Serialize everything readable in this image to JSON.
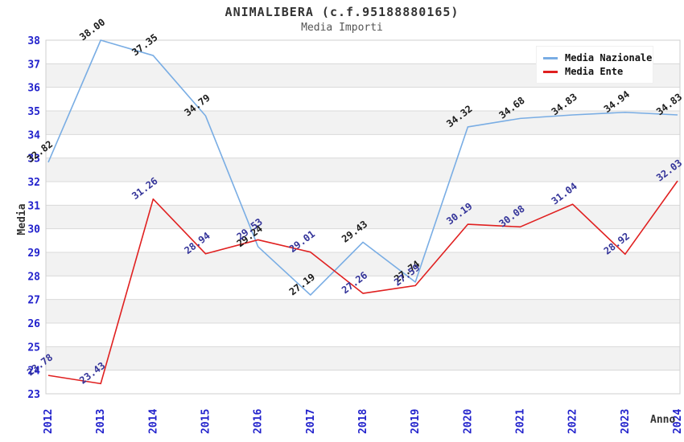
{
  "header": {
    "title": "ANIMALIBERA (c.f.95188880165)",
    "subtitle": "Media Importi"
  },
  "colors": {
    "band": "#f2f2f2",
    "gridline": "#d9d9d9",
    "plot_border": "#cfcfcf",
    "axis_tick_text": "#2222cc",
    "nazionale_line": "#79ade4",
    "ente_line": "#e02020",
    "nazionale_label_text": "#1a1a1a",
    "ente_label_text": "#333399"
  },
  "chart_data": {
    "type": "line",
    "title": "ANIMALIBERA (c.f.95188880165)",
    "subtitle": "Media Importi",
    "xlabel": "Anno",
    "ylabel": "Media",
    "x": [
      2012,
      2013,
      2014,
      2015,
      2016,
      2017,
      2018,
      2019,
      2020,
      2021,
      2022,
      2023,
      2024
    ],
    "ylim": [
      23,
      38
    ],
    "y_tick_step": 1,
    "grid": "horizontal gridlines with alternating shaded bands",
    "legend_position": "top-right",
    "series": [
      {
        "name": "Media Nazionale",
        "color": "#79ade4",
        "label_color": "#1a1a1a",
        "values": [
          32.82,
          38.0,
          37.35,
          34.79,
          29.24,
          27.19,
          29.43,
          27.74,
          34.32,
          34.68,
          34.83,
          34.94,
          34.83
        ]
      },
      {
        "name": "Media Ente",
        "color": "#e02020",
        "label_color": "#333399",
        "values": [
          23.78,
          23.43,
          31.26,
          28.94,
          29.53,
          29.01,
          27.26,
          27.59,
          30.19,
          30.08,
          31.04,
          28.92,
          32.03
        ]
      }
    ]
  }
}
